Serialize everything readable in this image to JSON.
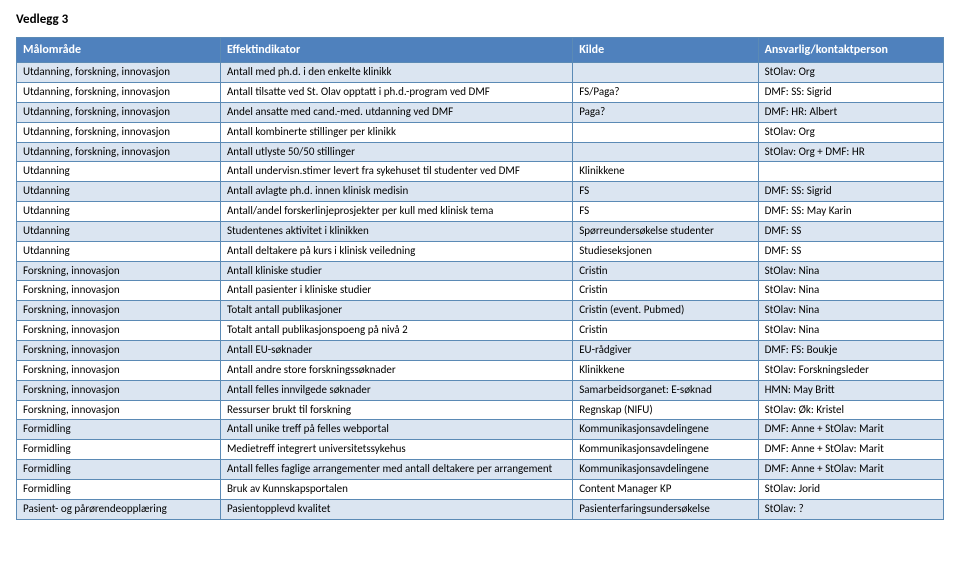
{
  "heading": "Vedlegg 3",
  "columns": [
    "Målområde",
    "Effektindikator",
    "Kilde",
    "Ansvarlig/kontaktperson"
  ],
  "rows": [
    [
      "Utdanning, forskning, innovasjon",
      "Antall med ph.d. i den enkelte klinikk",
      "",
      "StOlav: Org"
    ],
    [
      "Utdanning, forskning, innovasjon",
      "Antall tilsatte ved St. Olav opptatt i ph.d.-program ved DMF",
      "FS/Paga?",
      "DMF: SS: Sigrid"
    ],
    [
      "Utdanning, forskning, innovasjon",
      "Andel ansatte med cand.-med. utdanning ved DMF",
      "Paga?",
      "DMF: HR: Albert"
    ],
    [
      "Utdanning, forskning, innovasjon",
      "Antall kombinerte stillinger per klinikk",
      "",
      "StOlav: Org"
    ],
    [
      "Utdanning, forskning, innovasjon",
      "Antall utlyste 50/50 stillinger",
      "",
      "StOlav: Org + DMF: HR"
    ],
    [
      "Utdanning",
      "Antall undervisn.stimer levert fra sykehuset til studenter ved DMF",
      "Klinikkene",
      ""
    ],
    [
      "Utdanning",
      "Antall avlagte ph.d. innen klinisk medisin",
      "FS",
      "DMF: SS: Sigrid"
    ],
    [
      "Utdanning",
      "Antall/andel forskerlinjeprosjekter per kull med klinisk tema",
      "FS",
      "DMF: SS: May Karin"
    ],
    [
      "Utdanning",
      "Studentenes aktivitet i klinikken",
      "Spørreundersøkelse studenter",
      "DMF: SS"
    ],
    [
      "Utdanning",
      "Antall deltakere på kurs i klinisk veiledning",
      "Studieseksjonen",
      "DMF: SS"
    ],
    [
      "Forskning, innovasjon",
      "Antall kliniske studier",
      "Cristin",
      "StOlav: Nina"
    ],
    [
      "Forskning, innovasjon",
      "Antall pasienter i kliniske studier",
      "Cristin",
      "StOlav: Nina"
    ],
    [
      "Forskning, innovasjon",
      "Totalt antall publikasjoner",
      "Cristin (event. Pubmed)",
      "StOlav: Nina"
    ],
    [
      "Forskning, innovasjon",
      "Totalt antall publikasjonspoeng på nivå 2",
      "Cristin",
      "StOlav: Nina"
    ],
    [
      "Forskning, innovasjon",
      "Antall EU-søknader",
      "EU-rådgiver",
      "DMF: FS: Boukje"
    ],
    [
      "Forskning, innovasjon",
      "Antall andre store forskningssøknader",
      "Klinikkene",
      "StOlav: Forskningsleder"
    ],
    [
      "Forskning, innovasjon",
      "Antall felles innvilgede søknader",
      "Samarbeidsorganet: E-søknad",
      "HMN: May Britt"
    ],
    [
      "Forskning, innovasjon",
      "Ressurser brukt til forskning",
      "Regnskap (NIFU)",
      "StOlav: Øk: Kristel"
    ],
    [
      "Formidling",
      "Antall unike treff på felles webportal",
      "Kommunikasjonsavdelingene",
      "DMF: Anne + StOlav: Marit"
    ],
    [
      "Formidling",
      "Medietreff integrert universitetssykehus",
      "Kommunikasjonsavdelingene",
      "DMF: Anne + StOlav: Marit"
    ],
    [
      "Formidling",
      "Antall felles faglige arrangementer med antall deltakere per arrangement",
      "Kommunikasjonsavdelingene",
      "DMF: Anne + StOlav: Marit"
    ],
    [
      "Formidling",
      "Bruk av Kunnskapsportalen",
      "Content Manager KP",
      "StOlav: Jorid"
    ],
    [
      "Pasient- og pårørendeopplæring",
      "Pasientopplevd kvalitet",
      "Pasienterfaringsundersøkelse",
      "StOlav: ?"
    ]
  ]
}
